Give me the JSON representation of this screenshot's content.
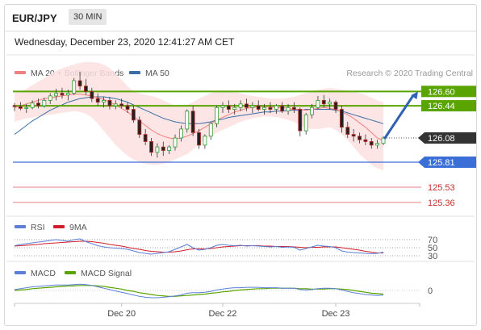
{
  "header": {
    "pair": "EUR/JPY",
    "timeframe": "30 MIN",
    "datetime": "Wednesday, December 23, 2020 12:41:27 AM CET"
  },
  "legend": {
    "ma20_label": "MA 20 + Bollinger Bands",
    "ma50_label": "MA 50",
    "credit": "Research © 2020 Trading Central",
    "rsi_label": "RSI",
    "rsi9_label": "9MA",
    "macd_label": "MACD",
    "macd_signal_label": "MACD Signal"
  },
  "colors": {
    "ma20": "#f08080",
    "ma50": "#3a6ea5",
    "bands_fill": "#fde0e0",
    "resistance": "#5aa400",
    "support": "#3a6fd8",
    "pivot_low": "#e06060",
    "current": "#333333",
    "arrow": "#2f62b0",
    "rsi": "#5b7fd6",
    "rsi9": "#d01e2a",
    "macd": "#5b7fd6",
    "macd_signal": "#5aa400"
  },
  "chart_data": {
    "type": "line",
    "main": {
      "ylim": [
        125.26,
        126.72
      ],
      "levels": [
        {
          "name": "resistance_2",
          "value": 126.6,
          "label": "126.60",
          "style": "resistance"
        },
        {
          "name": "resistance_1",
          "value": 126.44,
          "label": "126.44",
          "style": "resistance"
        },
        {
          "name": "current",
          "value": 126.08,
          "label": "126.08",
          "style": "current"
        },
        {
          "name": "support_1",
          "value": 125.81,
          "label": "125.81",
          "style": "support"
        },
        {
          "name": "pivot_1",
          "value": 125.53,
          "label": "125.53",
          "style": "pivot_low"
        },
        {
          "name": "pivot_2",
          "value": 125.36,
          "label": "125.36",
          "style": "pivot_low"
        }
      ],
      "candles": [
        [
          126.44,
          126.47,
          126.38,
          126.43
        ],
        [
          126.43,
          126.48,
          126.39,
          126.41
        ],
        [
          126.41,
          126.46,
          126.36,
          126.42
        ],
        [
          126.42,
          126.5,
          126.4,
          126.47
        ],
        [
          126.47,
          126.52,
          126.41,
          126.44
        ],
        [
          126.44,
          126.53,
          126.42,
          126.5
        ],
        [
          126.5,
          126.58,
          126.46,
          126.55
        ],
        [
          126.55,
          126.63,
          126.5,
          126.58
        ],
        [
          126.58,
          126.64,
          126.52,
          126.56
        ],
        [
          126.56,
          126.62,
          126.5,
          126.58
        ],
        [
          126.58,
          126.75,
          126.56,
          126.72
        ],
        [
          126.72,
          126.82,
          126.62,
          126.66
        ],
        [
          126.66,
          126.74,
          126.56,
          126.6
        ],
        [
          126.6,
          126.64,
          126.48,
          126.52
        ],
        [
          126.52,
          126.58,
          126.44,
          126.48
        ],
        [
          126.48,
          126.54,
          126.42,
          126.5
        ],
        [
          126.5,
          126.54,
          126.4,
          126.44
        ],
        [
          126.44,
          126.5,
          126.4,
          126.46
        ],
        [
          126.46,
          126.52,
          126.41,
          126.44
        ],
        [
          126.44,
          126.48,
          126.36,
          126.4
        ],
        [
          126.4,
          126.44,
          126.25,
          126.28
        ],
        [
          126.28,
          126.32,
          126.08,
          126.12
        ],
        [
          126.12,
          126.18,
          126.0,
          126.04
        ],
        [
          126.04,
          126.08,
          125.88,
          125.92
        ],
        [
          125.92,
          126.02,
          125.86,
          125.98
        ],
        [
          125.98,
          126.04,
          125.88,
          125.94
        ],
        [
          125.94,
          126.0,
          125.9,
          125.98
        ],
        [
          125.98,
          126.12,
          125.94,
          126.08
        ],
        [
          126.08,
          126.22,
          126.04,
          126.18
        ],
        [
          126.18,
          126.4,
          126.14,
          126.38
        ],
        [
          126.38,
          126.44,
          126.1,
          126.14
        ],
        [
          126.14,
          126.18,
          125.96,
          126.0
        ],
        [
          126.0,
          126.12,
          125.96,
          126.1
        ],
        [
          126.1,
          126.26,
          126.06,
          126.24
        ],
        [
          126.24,
          126.44,
          126.2,
          126.42
        ],
        [
          126.42,
          126.48,
          126.36,
          126.44
        ],
        [
          126.44,
          126.5,
          126.36,
          126.4
        ],
        [
          126.4,
          126.46,
          126.34,
          126.42
        ],
        [
          126.42,
          126.5,
          126.38,
          126.46
        ],
        [
          126.46,
          126.52,
          126.38,
          126.42
        ],
        [
          126.42,
          126.48,
          126.36,
          126.44
        ],
        [
          126.44,
          126.5,
          126.38,
          126.4
        ],
        [
          126.4,
          126.46,
          126.34,
          126.42
        ],
        [
          126.42,
          126.48,
          126.36,
          126.4
        ],
        [
          126.4,
          126.46,
          126.35,
          126.44
        ],
        [
          126.44,
          126.48,
          126.36,
          126.38
        ],
        [
          126.38,
          126.46,
          126.34,
          126.42
        ],
        [
          126.42,
          126.48,
          126.36,
          126.4
        ],
        [
          126.4,
          126.42,
          126.1,
          126.16
        ],
        [
          126.16,
          126.36,
          126.12,
          126.34
        ],
        [
          126.34,
          126.46,
          126.3,
          126.42
        ],
        [
          126.42,
          126.55,
          126.4,
          126.5
        ],
        [
          126.5,
          126.56,
          126.42,
          126.46
        ],
        [
          126.46,
          126.52,
          126.4,
          126.48
        ],
        [
          126.48,
          126.5,
          126.36,
          126.4
        ],
        [
          126.4,
          126.44,
          126.14,
          126.2
        ],
        [
          126.2,
          126.26,
          126.08,
          126.12
        ],
        [
          126.12,
          126.18,
          126.04,
          126.1
        ],
        [
          126.1,
          126.14,
          126.02,
          126.06
        ],
        [
          126.06,
          126.12,
          126.0,
          126.04
        ],
        [
          126.04,
          126.08,
          125.96,
          126.0
        ],
        [
          126.0,
          126.06,
          125.96,
          126.02
        ],
        [
          126.02,
          126.1,
          126.0,
          126.08
        ]
      ],
      "ma20": [
        126.42,
        126.44,
        126.46,
        126.48,
        126.5,
        126.52,
        126.53,
        126.54,
        126.55,
        126.56,
        126.57,
        126.57,
        126.56,
        126.55,
        126.53,
        126.51,
        126.48,
        126.45,
        126.41,
        126.37,
        126.32,
        126.27,
        126.22,
        126.17,
        126.13,
        126.1,
        126.08,
        126.07,
        126.08,
        126.1,
        126.13,
        126.16,
        126.2,
        126.24,
        126.28,
        126.31,
        126.34,
        126.37,
        126.39,
        126.41,
        126.42,
        126.43,
        126.43,
        126.43,
        126.42,
        126.42,
        126.41,
        126.4,
        126.4,
        126.39,
        126.4,
        126.41,
        126.42,
        126.41,
        126.4,
        126.37,
        126.34,
        126.3,
        126.25,
        126.2,
        126.14,
        126.08,
        126.05
      ],
      "ma50": [
        126.12,
        126.17,
        126.22,
        126.27,
        126.31,
        126.35,
        126.39,
        126.42,
        126.45,
        126.48,
        126.5,
        126.52,
        126.53,
        126.54,
        126.54,
        126.54,
        126.53,
        126.52,
        126.5,
        126.48,
        126.45,
        126.42,
        126.39,
        126.36,
        126.33,
        126.3,
        126.28,
        126.26,
        126.25,
        126.24,
        126.24,
        126.24,
        126.25,
        126.26,
        126.28,
        126.29,
        126.31,
        126.32,
        126.33,
        126.34,
        126.35,
        126.36,
        126.37,
        126.37,
        126.38,
        126.38,
        126.39,
        126.39,
        126.39,
        126.4,
        126.4,
        126.4,
        126.4,
        126.4,
        126.39,
        126.38,
        126.36,
        126.34,
        126.32,
        126.3,
        126.28,
        126.26,
        126.24
      ],
      "bb_upper": [
        126.58,
        126.6,
        126.63,
        126.67,
        126.71,
        126.75,
        126.79,
        126.83,
        126.86,
        126.88,
        126.9,
        126.92,
        126.93,
        126.93,
        126.92,
        126.9,
        126.86,
        126.8,
        126.73,
        126.66,
        126.6,
        126.58,
        126.56,
        126.55,
        126.53,
        126.5,
        126.47,
        126.44,
        126.43,
        126.45,
        126.48,
        126.52,
        126.55,
        126.58,
        126.6,
        126.61,
        126.61,
        126.6,
        126.58,
        126.56,
        126.55,
        126.54,
        126.53,
        126.52,
        126.52,
        126.52,
        126.53,
        126.54,
        126.56,
        126.58,
        126.6,
        126.62,
        126.63,
        126.64,
        126.63,
        126.62,
        126.61,
        126.6,
        126.58,
        126.56,
        126.53,
        126.5,
        126.48
      ],
      "bb_lower": [
        126.26,
        126.28,
        126.3,
        126.31,
        126.32,
        126.33,
        126.34,
        126.35,
        126.36,
        126.37,
        126.38,
        126.37,
        126.35,
        126.31,
        126.24,
        126.16,
        126.08,
        126.0,
        125.94,
        125.88,
        125.84,
        125.81,
        125.79,
        125.78,
        125.78,
        125.79,
        125.81,
        125.84,
        125.87,
        125.9,
        125.95,
        126.01,
        126.06,
        126.1,
        126.14,
        126.17,
        126.2,
        126.23,
        126.26,
        126.28,
        126.3,
        126.31,
        126.32,
        126.32,
        126.31,
        126.3,
        126.28,
        126.26,
        126.22,
        126.19,
        126.18,
        126.18,
        126.19,
        126.2,
        126.17,
        126.12,
        126.06,
        125.98,
        125.9,
        125.84,
        125.78,
        125.74,
        125.72
      ],
      "forecast_arrow": {
        "from": 126.08,
        "to": 126.6
      }
    },
    "rsi": {
      "ylim": [
        20,
        80
      ],
      "levels": [
        70,
        50,
        30
      ],
      "level_labels": [
        "70",
        "50",
        "30"
      ],
      "rsi": [
        55,
        58,
        60,
        62,
        64,
        66,
        68,
        70,
        68,
        66,
        70,
        72,
        65,
        60,
        55,
        52,
        50,
        49,
        48,
        46,
        42,
        38,
        36,
        34,
        36,
        38,
        40,
        46,
        52,
        58,
        50,
        44,
        46,
        50,
        56,
        58,
        56,
        55,
        56,
        54,
        55,
        54,
        53,
        52,
        53,
        51,
        52,
        51,
        44,
        48,
        52,
        56,
        54,
        53,
        50,
        42,
        39,
        38,
        37,
        36,
        35,
        36,
        39
      ],
      "ma9": [
        54,
        55,
        56,
        57,
        58,
        60,
        61,
        62,
        63,
        64,
        65,
        66,
        66,
        65,
        63,
        61,
        58,
        56,
        54,
        51,
        48,
        46,
        43,
        41,
        40,
        39,
        39,
        40,
        42,
        45,
        47,
        47,
        47,
        48,
        50,
        52,
        53,
        54,
        55,
        55,
        55,
        55,
        54,
        54,
        53,
        53,
        53,
        52,
        51,
        50,
        51,
        51,
        52,
        52,
        52,
        50,
        48,
        46,
        44,
        41,
        39,
        37,
        37
      ]
    },
    "macd": {
      "zero_label": "0",
      "ylim": [
        -0.25,
        0.25
      ],
      "macd": [
        0.02,
        0.04,
        0.06,
        0.08,
        0.09,
        0.1,
        0.11,
        0.12,
        0.12,
        0.12,
        0.13,
        0.14,
        0.13,
        0.11,
        0.08,
        0.05,
        0.02,
        -0.01,
        -0.04,
        -0.07,
        -0.1,
        -0.13,
        -0.15,
        -0.16,
        -0.16,
        -0.15,
        -0.14,
        -0.12,
        -0.1,
        -0.06,
        -0.05,
        -0.05,
        -0.04,
        -0.02,
        0.01,
        0.03,
        0.05,
        0.06,
        0.06,
        0.07,
        0.07,
        0.07,
        0.06,
        0.06,
        0.06,
        0.05,
        0.05,
        0.05,
        0.02,
        0.01,
        0.02,
        0.04,
        0.05,
        0.05,
        0.04,
        0.01,
        -0.02,
        -0.05,
        -0.07,
        -0.09,
        -0.1,
        -0.11,
        -0.1
      ],
      "signal": [
        0.0,
        0.01,
        0.02,
        0.04,
        0.05,
        0.06,
        0.07,
        0.08,
        0.09,
        0.1,
        0.1,
        0.11,
        0.11,
        0.11,
        0.1,
        0.09,
        0.07,
        0.05,
        0.03,
        0.0,
        -0.02,
        -0.05,
        -0.07,
        -0.09,
        -0.11,
        -0.12,
        -0.13,
        -0.13,
        -0.12,
        -0.11,
        -0.1,
        -0.09,
        -0.08,
        -0.06,
        -0.05,
        -0.03,
        -0.02,
        0.0,
        0.01,
        0.02,
        0.03,
        0.04,
        0.04,
        0.05,
        0.05,
        0.05,
        0.05,
        0.05,
        0.04,
        0.04,
        0.03,
        0.03,
        0.03,
        0.04,
        0.04,
        0.03,
        0.02,
        0.0,
        -0.02,
        -0.04,
        -0.06,
        -0.07,
        -0.08
      ]
    },
    "x_labels": [
      {
        "label": "Dec 20",
        "index": 18
      },
      {
        "label": "Dec 22",
        "index": 35
      },
      {
        "label": "Dec 23",
        "index": 54
      }
    ]
  }
}
